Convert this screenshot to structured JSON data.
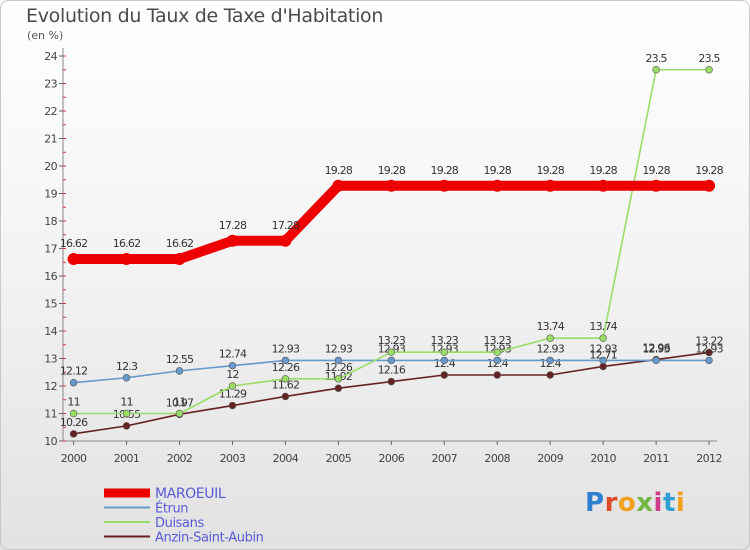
{
  "title": "Evolution du Taux de Taxe d'Habitation",
  "subtitle": "(en %)",
  "brand": {
    "logo": "Proxiti"
  },
  "chart_data": {
    "type": "line",
    "x": [
      "2000",
      "2001",
      "2002",
      "2003",
      "2004",
      "2005",
      "2006",
      "2007",
      "2008",
      "2009",
      "2010",
      "2011",
      "2012"
    ],
    "ylim": [
      10,
      24
    ],
    "yticks": [
      10,
      11,
      12,
      13,
      14,
      15,
      16,
      17,
      18,
      19,
      20,
      21,
      22,
      23,
      24
    ],
    "grid": false,
    "legend_position": "bottom-left",
    "series": [
      {
        "name": "MAROEUIL",
        "color": "#ee0000",
        "values": [
          16.62,
          16.62,
          16.62,
          17.28,
          17.28,
          19.28,
          19.28,
          19.28,
          19.28,
          19.28,
          19.28,
          19.28,
          19.28
        ],
        "labels": [
          "16.62",
          "16.62",
          "16.62",
          "17.28",
          "17.28",
          "19.28",
          "19.28",
          "19.28",
          "19.28",
          "19.28",
          "19.28",
          "19.28",
          "19.28"
        ]
      },
      {
        "name": "Étrun",
        "color": "#6699cc",
        "values": [
          12.12,
          12.3,
          12.55,
          12.74,
          12.93,
          12.93,
          12.93,
          12.93,
          12.93,
          12.93,
          12.93,
          12.93,
          12.93
        ],
        "labels": [
          "12.12",
          "12.3",
          "12.55",
          "12.74",
          "12.93",
          "12.93",
          "12.93",
          "12.93",
          "12.93",
          "12.93",
          "12.93",
          "12.93",
          "12.93"
        ]
      },
      {
        "name": "Duisans",
        "color": "#99dd66",
        "values": [
          11,
          11,
          11,
          12,
          12.26,
          12.26,
          13.23,
          13.23,
          13.23,
          13.74,
          13.74,
          23.5,
          23.5
        ],
        "labels": [
          "11",
          "11",
          "11",
          "12",
          "12.26",
          "12.26",
          "13.23",
          "13.23",
          "13.23",
          "13.74",
          "13.74",
          "23.5",
          "23.5"
        ]
      },
      {
        "name": "Anzin-Saint-Aubin",
        "color": "#662222",
        "values": [
          10.26,
          10.55,
          10.97,
          11.29,
          11.62,
          11.92,
          12.16,
          12.4,
          12.4,
          12.4,
          12.71,
          12.96,
          13.22
        ],
        "labels": [
          "10.26",
          "10.55",
          "10.97",
          "11.29",
          "11.62",
          "11.92",
          "12.16",
          "12.4",
          "12.4",
          "12.4",
          "12.71",
          "12.96",
          "13.22"
        ]
      }
    ]
  }
}
